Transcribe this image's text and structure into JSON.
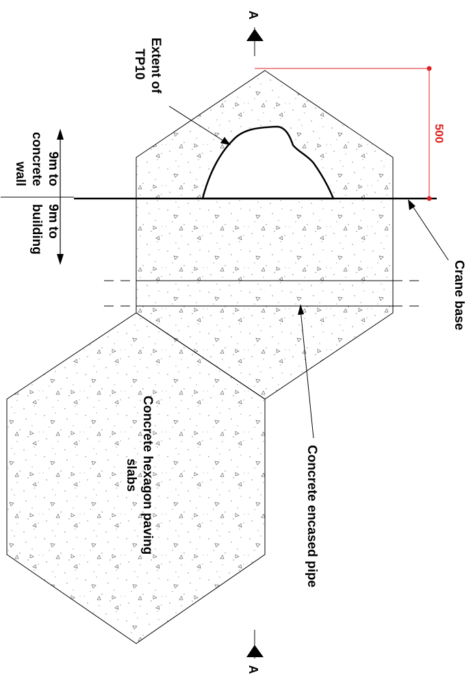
{
  "labels": {
    "extent_line1": "Extent of",
    "extent_line2": "TP10",
    "wall_line1": "9m to",
    "wall_line2": "concrete",
    "wall_line3": "wall",
    "building_line1": "9m to",
    "building_line2": "building",
    "crane_base": "Crane base",
    "encased_pipe": "Concrete encased pipe",
    "slabs_line1": "Concrete hexagon paving",
    "slabs_line2": "slabs",
    "dimension": "500",
    "section_top": "A",
    "section_bottom": "A"
  },
  "colors": {
    "line": "#000000",
    "dimension": "#e02020",
    "stipple": "#6a6a6a"
  }
}
